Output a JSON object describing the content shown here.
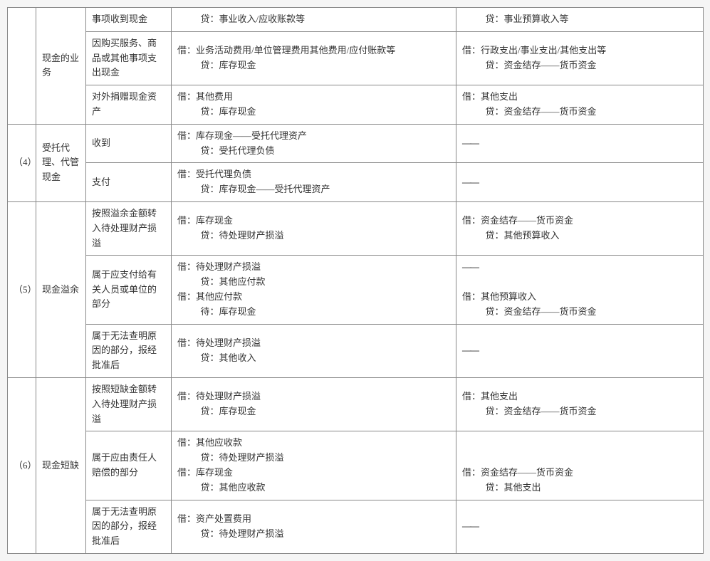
{
  "rows": [
    {
      "idx": "",
      "idx_rs": 3,
      "cat": "现金的业务",
      "cat_rs": 3,
      "sub": "事项收到现金",
      "left": "          贷：事业收入/应收账款等",
      "right": "          贷：事业预算收入等"
    },
    {
      "sub": "因购买服务、商品或其他事项支出现金",
      "left": "借：业务活动费用/单位管理费用其他费用/应付账款等\n          贷：库存现金",
      "right": "借：行政支出/事业支出/其他支出等\n          贷：资金结存——货币资金"
    },
    {
      "sub": "对外捐赠现金资产",
      "left": "借：其他费用\n          贷：库存现金",
      "right": "借：其他支出\n          贷：资金结存——货币资金"
    },
    {
      "idx": "（4）",
      "idx_rs": 2,
      "cat": "受托代理、代管现金",
      "cat_rs": 2,
      "sub": "收到",
      "left": "借：库存现金——受托代理资产\n          贷：受托代理负债",
      "right": "——",
      "right_dash": true
    },
    {
      "sub": "支付",
      "left": "借：受托代理负债\n          贷：库存现金——受托代理资产",
      "right": "——",
      "right_dash": true
    },
    {
      "idx": "（5）",
      "idx_rs": 3,
      "cat": "现金溢余",
      "cat_rs": 3,
      "sub": "按照溢余金额转入待处理财产损溢",
      "left": "借：库存现金\n          贷：待处理财产损溢",
      "right": "借：资金结存——货币资金\n          贷：其他预算收入"
    },
    {
      "sub": "属于应支付给有关人员或单位的部分",
      "left": "借：待处理财产损溢\n          贷：其他应付款\n借：其他应付款\n          待：库存现金",
      "right": "——\n\n借：其他预算收入\n          贷：资金结存——货币资金",
      "right_mixed": true
    },
    {
      "sub": "属于无法查明原因的部分，报经批准后",
      "left": "借：待处理财产损溢\n          贷：其他收入",
      "right": "——",
      "right_dash": true
    },
    {
      "idx": "（6）",
      "idx_rs": 3,
      "cat": "现金短缺",
      "cat_rs": 3,
      "sub": "按照短缺金额转入待处理财产损溢",
      "left": "借：待处理财产损溢\n          贷：库存现金",
      "right": "借：其他支出\n          贷：资金结存——货币资金"
    },
    {
      "sub": "属于应由责任人赔偿的部分",
      "left": "借：其他应收款\n          贷：待处理财产损溢\n借：库存现金\n          贷：其他应收款",
      "right": "\n\n借：资金结存——货币资金\n          贷：其他支出"
    },
    {
      "sub": "属于无法查明原因的部分，报经批准后",
      "left": "借：资产处置费用\n          贷：待处理财产损溢",
      "right": "——",
      "right_dash": true
    }
  ]
}
